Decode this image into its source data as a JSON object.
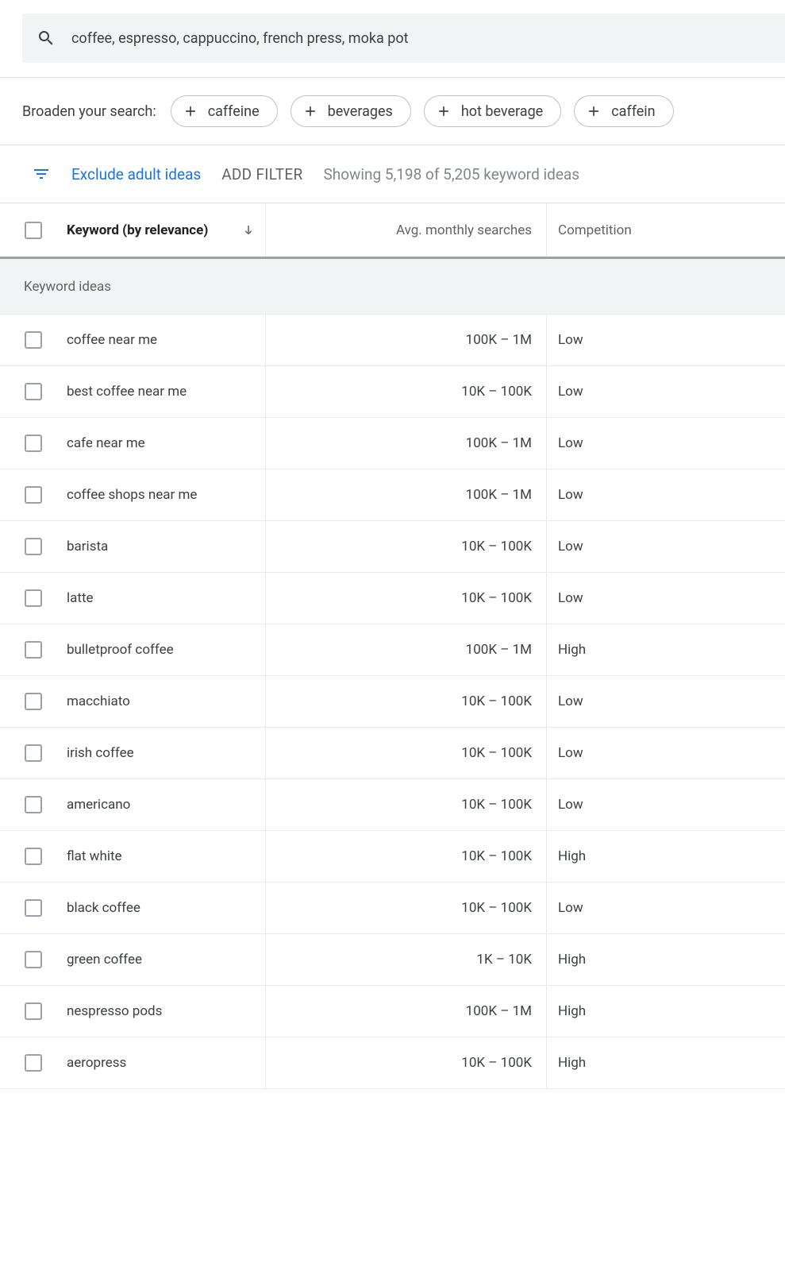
{
  "search": {
    "value": "coffee, espresso, cappuccino, french press, moka pot"
  },
  "broaden": {
    "label": "Broaden your search:",
    "chips": [
      "caffeine",
      "beverages",
      "hot beverage",
      "caffein"
    ]
  },
  "filter": {
    "exclude_label": "Exclude adult ideas",
    "add_filter_label": "Add Filter",
    "showing_text": "Showing 5,198 of 5,205 keyword ideas"
  },
  "columns": {
    "keyword": "Keyword (by relevance)",
    "searches": "Avg. monthly searches",
    "competition": "Competition"
  },
  "section_header": "Keyword ideas",
  "rows": [
    {
      "keyword": "coffee near me",
      "searches": "100K – 1M",
      "competition": "Low"
    },
    {
      "keyword": "best coffee near me",
      "searches": "10K – 100K",
      "competition": "Low"
    },
    {
      "keyword": "cafe near me",
      "searches": "100K – 1M",
      "competition": "Low"
    },
    {
      "keyword": "coffee shops near me",
      "searches": "100K – 1M",
      "competition": "Low"
    },
    {
      "keyword": "barista",
      "searches": "10K – 100K",
      "competition": "Low"
    },
    {
      "keyword": "latte",
      "searches": "10K – 100K",
      "competition": "Low"
    },
    {
      "keyword": "bulletproof coffee",
      "searches": "100K – 1M",
      "competition": "High"
    },
    {
      "keyword": "macchiato",
      "searches": "10K – 100K",
      "competition": "Low"
    },
    {
      "keyword": "irish coffee",
      "searches": "10K – 100K",
      "competition": "Low"
    },
    {
      "keyword": "americano",
      "searches": "10K – 100K",
      "competition": "Low"
    },
    {
      "keyword": "flat white",
      "searches": "10K – 100K",
      "competition": "High"
    },
    {
      "keyword": "black coffee",
      "searches": "10K – 100K",
      "competition": "Low"
    },
    {
      "keyword": "green coffee",
      "searches": "1K – 10K",
      "competition": "High"
    },
    {
      "keyword": "nespresso pods",
      "searches": "100K – 1M",
      "competition": "High"
    },
    {
      "keyword": "aeropress",
      "searches": "10K – 100K",
      "competition": "High"
    }
  ],
  "colors": {
    "link_blue": "#1a73e8",
    "text_primary": "#3c4043",
    "text_secondary": "#5f6368",
    "border": "#dadce0",
    "surface": "#f1f3f4"
  }
}
